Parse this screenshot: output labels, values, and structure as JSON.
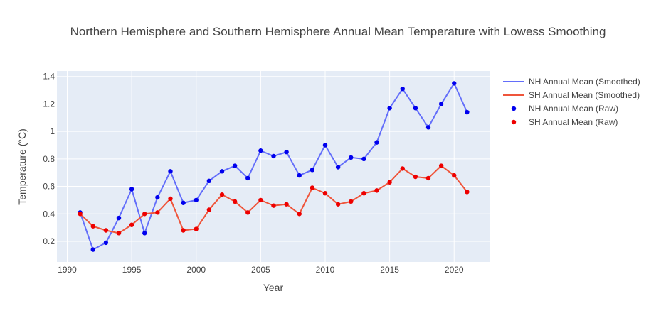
{
  "chart_data": {
    "type": "line",
    "title": "Northern Hemisphere  and Southern Hemisphere Annual Mean Temperature with Lowess Smoothing",
    "xlabel": "Year",
    "ylabel": "Temperature (°C)",
    "xlim": [
      1989.2,
      2022.8
    ],
    "ylim": [
      0.05,
      1.44
    ],
    "xticks": [
      1990,
      1995,
      2000,
      2005,
      2010,
      2015,
      2020
    ],
    "yticks": [
      0.2,
      0.4,
      0.6,
      0.8,
      1,
      1.2,
      1.4
    ],
    "grid": true,
    "legend_position": "top-right",
    "x": [
      1991,
      1992,
      1993,
      1994,
      1995,
      1996,
      1997,
      1998,
      1999,
      2000,
      2001,
      2002,
      2003,
      2004,
      2005,
      2006,
      2007,
      2008,
      2009,
      2010,
      2011,
      2012,
      2013,
      2014,
      2015,
      2016,
      2017,
      2018,
      2019,
      2020,
      2021
    ],
    "series": [
      {
        "name": "NH Annual Mean (Smoothed)",
        "kind": "line",
        "color": "#636efa",
        "values": [
          0.41,
          0.14,
          0.19,
          0.37,
          0.58,
          0.26,
          0.52,
          0.71,
          0.48,
          0.5,
          0.64,
          0.71,
          0.75,
          0.66,
          0.86,
          0.82,
          0.85,
          0.68,
          0.72,
          0.9,
          0.74,
          0.81,
          0.8,
          0.92,
          1.17,
          1.31,
          1.17,
          1.03,
          1.2,
          1.35,
          1.14
        ]
      },
      {
        "name": "SH Annual Mean (Smoothed)",
        "kind": "line",
        "color": "#ef553b",
        "values": [
          0.4,
          0.31,
          0.28,
          0.26,
          0.32,
          0.4,
          0.41,
          0.51,
          0.28,
          0.29,
          0.43,
          0.54,
          0.49,
          0.41,
          0.5,
          0.46,
          0.47,
          0.4,
          0.59,
          0.55,
          0.47,
          0.49,
          0.55,
          0.57,
          0.63,
          0.73,
          0.67,
          0.66,
          0.75,
          0.68,
          0.56
        ]
      },
      {
        "name": "NH Annual Mean (Raw)",
        "kind": "markers",
        "color": "#0000ee",
        "values": [
          0.41,
          0.14,
          0.19,
          0.37,
          0.58,
          0.26,
          0.52,
          0.71,
          0.48,
          0.5,
          0.64,
          0.71,
          0.75,
          0.66,
          0.86,
          0.82,
          0.85,
          0.68,
          0.72,
          0.9,
          0.74,
          0.81,
          0.8,
          0.92,
          1.17,
          1.31,
          1.17,
          1.03,
          1.2,
          1.35,
          1.14
        ]
      },
      {
        "name": "SH Annual Mean (Raw)",
        "kind": "markers",
        "color": "#ee0000",
        "values": [
          0.4,
          0.31,
          0.28,
          0.26,
          0.32,
          0.4,
          0.41,
          0.51,
          0.28,
          0.29,
          0.43,
          0.54,
          0.49,
          0.41,
          0.5,
          0.46,
          0.47,
          0.4,
          0.59,
          0.55,
          0.47,
          0.49,
          0.55,
          0.57,
          0.63,
          0.73,
          0.67,
          0.66,
          0.75,
          0.68,
          0.56
        ]
      }
    ],
    "colors": {
      "plot_bg": "#e5ecf6",
      "grid": "#ffffff",
      "text": "#444444"
    }
  }
}
